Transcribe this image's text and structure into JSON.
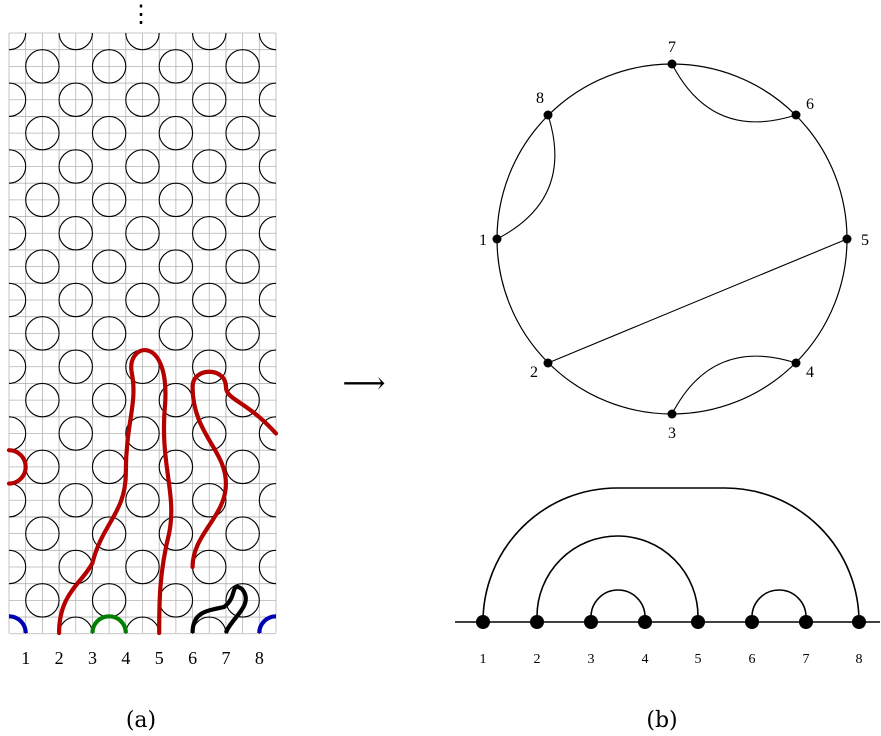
{
  "panel_a": {
    "caption": "(a)",
    "continuation": "⋮",
    "labels": [
      "1",
      "2",
      "3",
      "4",
      "5",
      "6",
      "7",
      "8"
    ],
    "colors": {
      "grid": "#b4b4b4",
      "tile": "#000000",
      "red": "#b50000",
      "blue": "#0000b4",
      "green": "#008000",
      "black": "#000000"
    }
  },
  "arrow": "⟶",
  "panel_b": {
    "caption": "(b)",
    "circle_labels": [
      "1",
      "2",
      "3",
      "4",
      "5",
      "6",
      "7",
      "8"
    ],
    "chords": [
      [
        1,
        8
      ],
      [
        2,
        5
      ],
      [
        3,
        4
      ],
      [
        6,
        7
      ]
    ],
    "line_labels": [
      "1",
      "2",
      "3",
      "4",
      "5",
      "6",
      "7",
      "8"
    ],
    "arcs": [
      [
        1,
        8
      ],
      [
        2,
        5
      ],
      [
        3,
        4
      ],
      [
        6,
        7
      ]
    ]
  }
}
